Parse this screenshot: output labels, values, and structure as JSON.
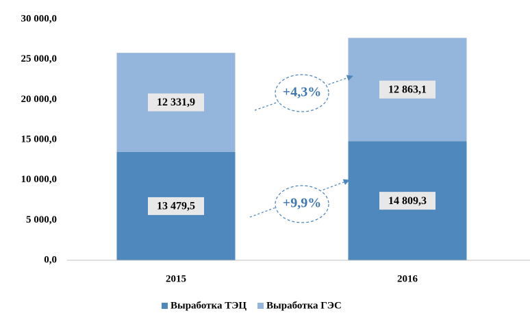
{
  "chart_data": {
    "type": "stacked_bar",
    "categories": [
      "2015",
      "2016"
    ],
    "series": [
      {
        "name": "Выработка ТЭЦ",
        "color": "#4f88bd",
        "values": [
          13479.5,
          14809.3
        ],
        "value_labels": [
          "13 479,5",
          "14 809,3"
        ]
      },
      {
        "name": "Выработка ГЭС",
        "color": "#95b6dc",
        "values": [
          12331.9,
          12863.1
        ],
        "value_labels": [
          "12 331,9",
          "12 863,1"
        ]
      }
    ],
    "ylim": [
      0,
      30000
    ],
    "yticks": [
      {
        "value": 0,
        "label": "0,0"
      },
      {
        "value": 5000,
        "label": "5 000,0"
      },
      {
        "value": 10000,
        "label": "10 000,0"
      },
      {
        "value": 15000,
        "label": "15 000,0"
      },
      {
        "value": 20000,
        "label": "20 000,0"
      },
      {
        "value": 25000,
        "label": "25 000,0"
      },
      {
        "value": 30000,
        "label": "30 000,0"
      }
    ],
    "annotations": [
      "+4,3%",
      "+9,9%"
    ],
    "legend": "bottom"
  }
}
